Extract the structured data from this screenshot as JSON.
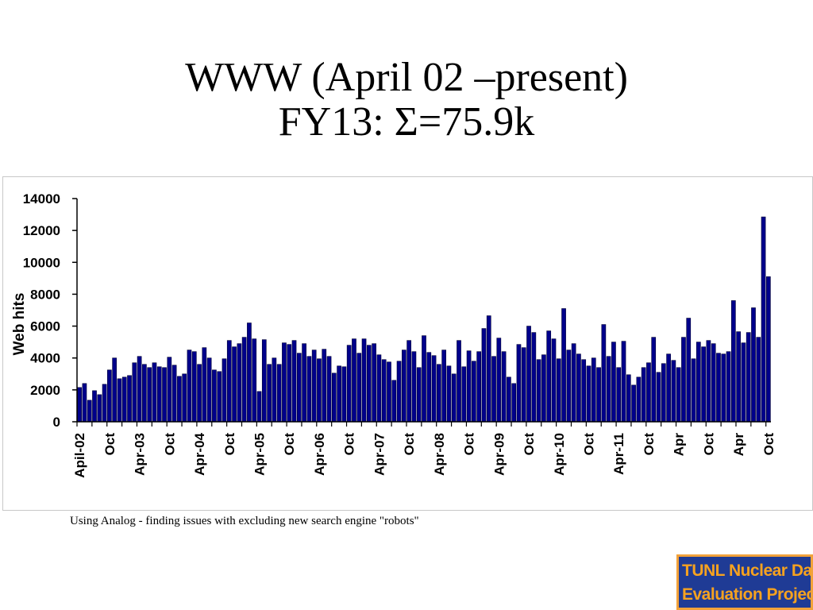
{
  "slide": {
    "title_line1": "WWW (April 02 –present)",
    "title_line2": "FY13: Σ=75.9k",
    "caption": "Using Analog - finding issues with excluding new search engine \"robots\"",
    "logo_line1": "TUNL Nuclear Data",
    "logo_line2": "Evaluation Project"
  },
  "chart_data": {
    "type": "bar",
    "title": "",
    "xlabel": "",
    "ylabel": "Web hits",
    "ylim": [
      0,
      14000
    ],
    "yticks": [
      0,
      2000,
      4000,
      6000,
      8000,
      10000,
      12000,
      14000
    ],
    "ytick_labels": [
      "0",
      "2000",
      "4000",
      "6000",
      "8000",
      "10000",
      "12000",
      "14000"
    ],
    "grid": false,
    "legend": "none",
    "colors": {
      "bar": "#00008b",
      "bar_edge": "#000033",
      "axis": "#000000"
    },
    "first_month": "2002-04",
    "xtick_labels": [
      {
        "index": 0,
        "label": "Apil-02"
      },
      {
        "index": 6,
        "label": "Oct"
      },
      {
        "index": 12,
        "label": "Apr-03"
      },
      {
        "index": 18,
        "label": "Oct"
      },
      {
        "index": 24,
        "label": "Apr-04"
      },
      {
        "index": 30,
        "label": "Oct"
      },
      {
        "index": 36,
        "label": "Apr-05"
      },
      {
        "index": 42,
        "label": "Oct"
      },
      {
        "index": 48,
        "label": "Apr-06"
      },
      {
        "index": 54,
        "label": "Oct"
      },
      {
        "index": 60,
        "label": "Apr-07"
      },
      {
        "index": 66,
        "label": "Oct"
      },
      {
        "index": 72,
        "label": "Apr-08"
      },
      {
        "index": 78,
        "label": "Oct"
      },
      {
        "index": 84,
        "label": "Apr-09"
      },
      {
        "index": 90,
        "label": "Oct"
      },
      {
        "index": 96,
        "label": "Apr-10"
      },
      {
        "index": 102,
        "label": "Oct"
      },
      {
        "index": 108,
        "label": "Apr-11"
      },
      {
        "index": 114,
        "label": "Oct"
      },
      {
        "index": 120,
        "label": "Apr"
      },
      {
        "index": 126,
        "label": "Oct"
      },
      {
        "index": 132,
        "label": "Apr"
      },
      {
        "index": 138,
        "label": "Oct"
      }
    ],
    "values": [
      2150,
      2400,
      1350,
      1950,
      1700,
      2350,
      3250,
      4000,
      2700,
      2800,
      2900,
      3700,
      4100,
      3600,
      3400,
      3700,
      3450,
      3400,
      4050,
      3550,
      2850,
      3000,
      4500,
      4400,
      3600,
      4650,
      4000,
      3250,
      3150,
      3950,
      5100,
      4700,
      4900,
      5300,
      6200,
      5200,
      1900,
      5150,
      3600,
      4000,
      3600,
      4950,
      4850,
      5100,
      4300,
      4900,
      4100,
      4500,
      3950,
      4550,
      4100,
      3050,
      3500,
      3450,
      4800,
      5200,
      4300,
      5200,
      4800,
      4900,
      4200,
      3900,
      3750,
      2600,
      3800,
      4500,
      5100,
      4400,
      3400,
      5400,
      4350,
      4150,
      3600,
      4500,
      3500,
      3000,
      5100,
      3450,
      4450,
      3800,
      4400,
      5850,
      6650,
      4100,
      5250,
      4400,
      2800,
      2400,
      4850,
      4650,
      6000,
      5600,
      3900,
      4200,
      5700,
      5200,
      3950,
      7100,
      4500,
      4900,
      4250,
      3900,
      3500,
      4000,
      3400,
      6100,
      4100,
      5000,
      3400,
      5050,
      2950,
      2300,
      2800,
      3400,
      3700,
      5300,
      3100,
      3650,
      4250,
      3850,
      3400,
      5300,
      6500,
      3950,
      5000,
      4700,
      5100,
      4900,
      4300,
      4250,
      4400,
      7600,
      5650,
      4950,
      5600,
      7150,
      5300,
      12850,
      9100
    ]
  }
}
